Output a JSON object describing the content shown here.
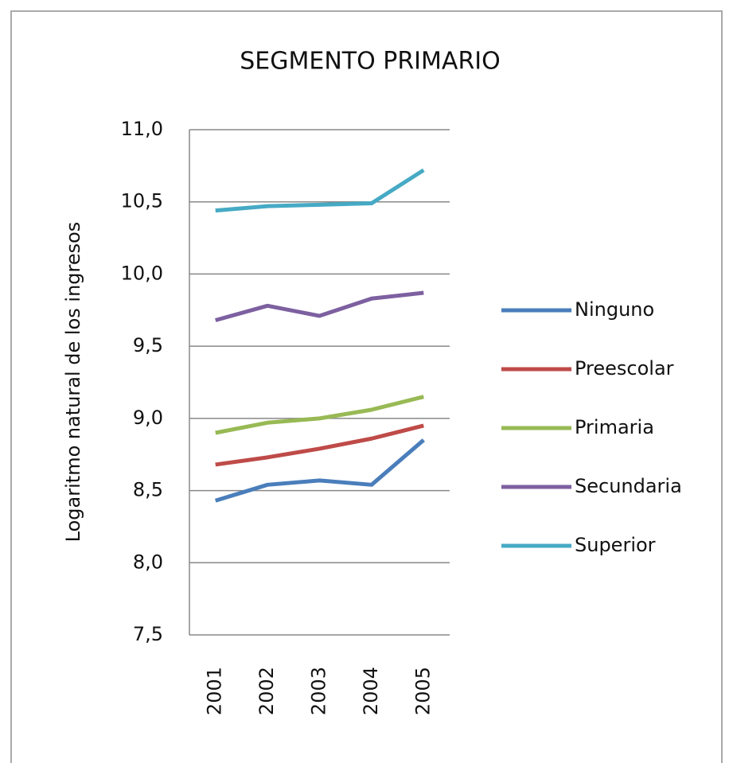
{
  "chart_data": {
    "type": "line",
    "title": "SEGMENTO PRIMARIO",
    "y_label": "Logaritmo natural  de los ingresos",
    "categories": [
      "2001",
      "2002",
      "2003",
      "2004",
      "2005"
    ],
    "series": [
      {
        "name": "Ninguno",
        "color": "#4a7ebb",
        "values": [
          8.43,
          8.54,
          8.57,
          8.54,
          8.85
        ]
      },
      {
        "name": "Preescolar",
        "color": "#be4b48",
        "values": [
          8.68,
          8.73,
          8.79,
          8.86,
          8.95
        ]
      },
      {
        "name": "Primaria",
        "color": "#98b954",
        "values": [
          8.9,
          8.97,
          9.0,
          9.06,
          9.15
        ]
      },
      {
        "name": "Secundaria",
        "color": "#7d60a0",
        "values": [
          9.68,
          9.78,
          9.71,
          9.83,
          9.87
        ]
      },
      {
        "name": "Superior",
        "color": "#46aac5",
        "values": [
          10.44,
          10.47,
          10.48,
          10.49,
          10.72
        ]
      }
    ],
    "ylim": [
      7.5,
      11.0
    ],
    "yticks": [
      {
        "value": 7.5,
        "label": "7,5"
      },
      {
        "value": 8.0,
        "label": "8,0"
      },
      {
        "value": 8.5,
        "label": "8,5"
      },
      {
        "value": 9.0,
        "label": "9,0"
      },
      {
        "value": 9.5,
        "label": "9,5"
      },
      {
        "value": 10.0,
        "label": "10,0"
      },
      {
        "value": 10.5,
        "label": "10,5"
      },
      {
        "value": 11.0,
        "label": "11,0"
      }
    ],
    "grid": true,
    "legend": "right"
  }
}
